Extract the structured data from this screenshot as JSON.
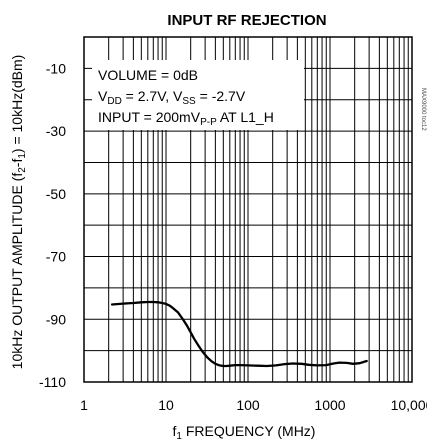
{
  "chart_data": {
    "type": "line",
    "title": "INPUT RF REJECTION",
    "xlabel": {
      "pre": "f",
      "sub": "1",
      "post": " FREQUENCY (MHz)"
    },
    "ylabel": {
      "pre": "10kHz OUTPUT AMPLITUDE (f",
      "sub1": "2",
      "mid": "-f",
      "sub2": "1",
      "post": ") = 10kHz(dBm)"
    },
    "x_scale": "log",
    "xlim": [
      1,
      10000
    ],
    "ylim": [
      -110,
      0
    ],
    "x_tick_labels": [
      "1",
      "10",
      "100",
      "1000",
      "10,000"
    ],
    "y_tick_labels": [
      "-10",
      "-30",
      "-50",
      "-70",
      "-90",
      "-110"
    ],
    "grid": true,
    "annotations": [
      {
        "id": "volume",
        "text": "VOLUME = 0dB"
      },
      {
        "id": "supply",
        "parts": [
          "V",
          "DD",
          " = 2.7V, V",
          "SS",
          " = -2.7V"
        ]
      },
      {
        "id": "input",
        "parts": [
          "INPUT = 200mV",
          "P-P",
          " AT L1_H"
        ]
      }
    ],
    "figure_code": "MAX9000 toc12",
    "series": [
      {
        "x": [
          2.2,
          3,
          4,
          5,
          6,
          7,
          8,
          9,
          10,
          11,
          12,
          14,
          16,
          18,
          20,
          22,
          25,
          28,
          32,
          36,
          40,
          45,
          50,
          55,
          60,
          70,
          80,
          100,
          130,
          170,
          220,
          280,
          350,
          450,
          550,
          700,
          900,
          1100,
          1300,
          1600,
          1900,
          2300,
          2800
        ],
        "y": [
          -85.3,
          -85.0,
          -84.8,
          -84.6,
          -84.5,
          -84.5,
          -84.6,
          -84.8,
          -85.1,
          -85.6,
          -86.3,
          -87.8,
          -89.9,
          -92.0,
          -94.2,
          -96.2,
          -98.5,
          -100.4,
          -102.2,
          -103.4,
          -104.2,
          -104.7,
          -104.9,
          -104.9,
          -104.8,
          -104.6,
          -104.6,
          -104.7,
          -104.8,
          -104.9,
          -104.7,
          -104.3,
          -104.1,
          -104.2,
          -104.5,
          -104.7,
          -104.6,
          -104.1,
          -103.8,
          -103.9,
          -104.2,
          -104.0,
          -103.3
        ]
      }
    ]
  }
}
